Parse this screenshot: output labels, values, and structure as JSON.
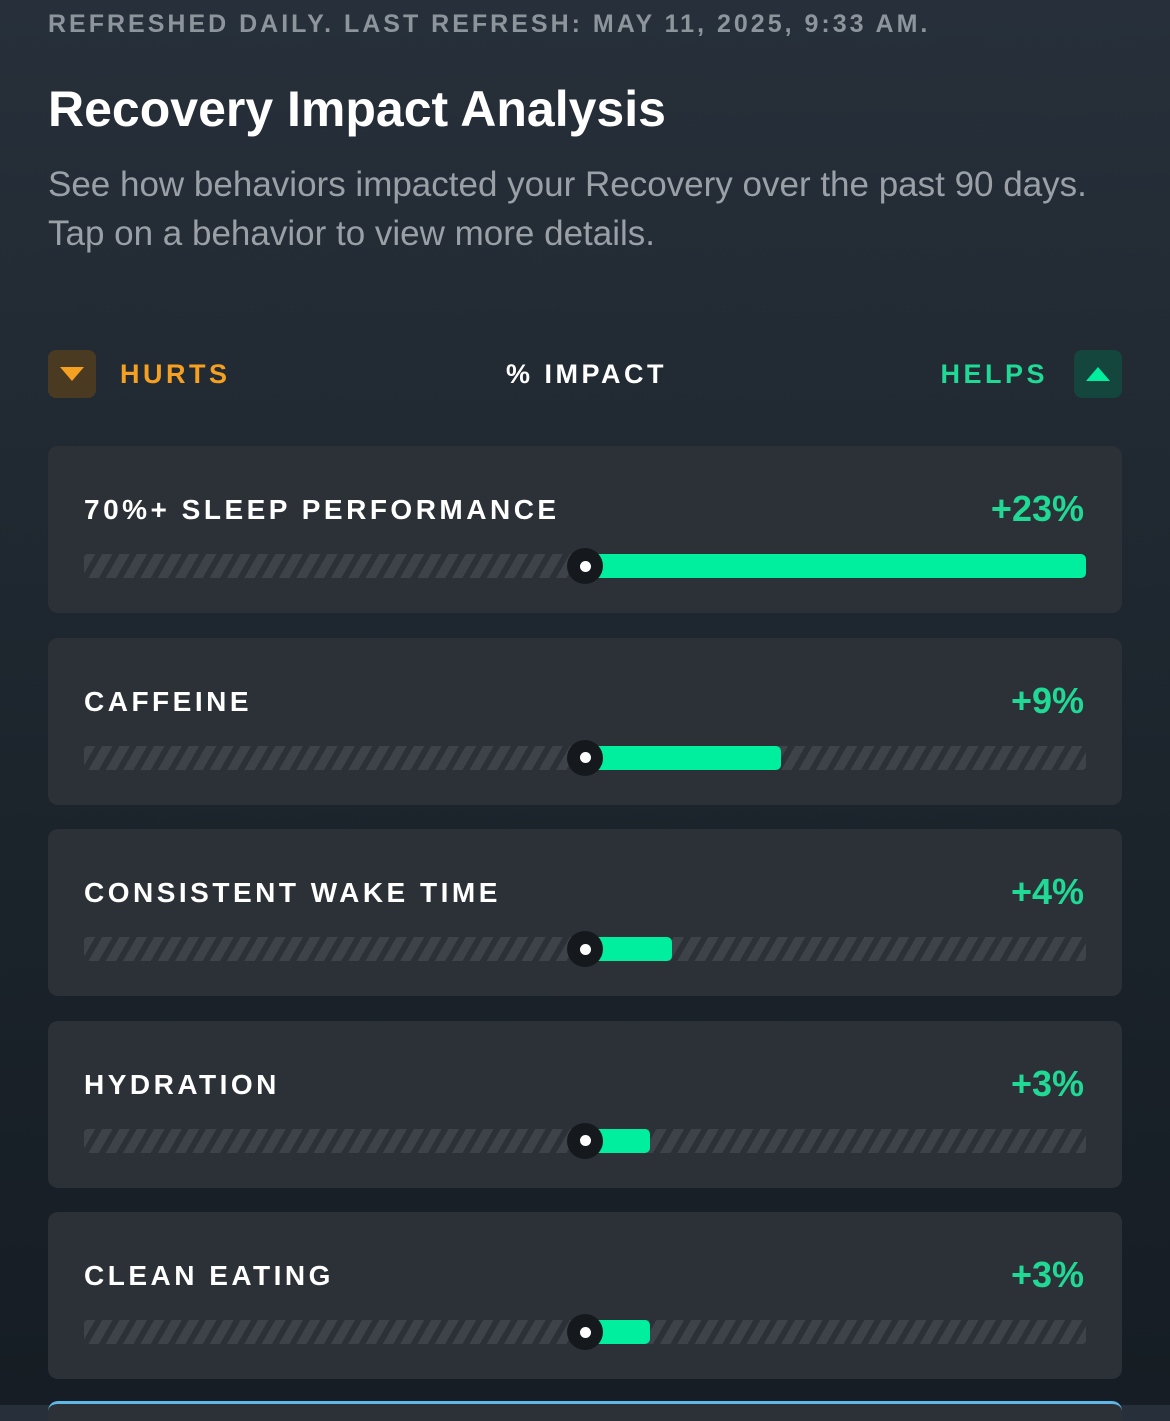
{
  "header": {
    "refresh_note": "REFRESHED DAILY. LAST REFRESH: MAY 11, 2025, 9:33 AM.",
    "title": "Recovery Impact Analysis",
    "subtitle": "See how behaviors impacted your Recovery over the past 90 days. Tap on a behavior to view more details."
  },
  "legend": {
    "hurts_label": "HURTS",
    "impact_label": "% IMPACT",
    "helps_label": "HELPS",
    "hurts_icon": "triangle-down-icon",
    "helps_icon": "triangle-up-icon",
    "hurts_color": "#f6a022",
    "helps_color": "#00ef9f"
  },
  "scale": {
    "max_percent": 23
  },
  "behaviors": [
    {
      "name": "70%+ SLEEP PERFORMANCE",
      "impact_label": "+23%",
      "impact": 23
    },
    {
      "name": "CAFFEINE",
      "impact_label": "+9%",
      "impact": 9
    },
    {
      "name": "CONSISTENT WAKE TIME",
      "impact_label": "+4%",
      "impact": 4
    },
    {
      "name": "HYDRATION",
      "impact_label": "+3%",
      "impact": 3
    },
    {
      "name": "CLEAN EATING",
      "impact_label": "+3%",
      "impact": 3
    }
  ]
}
